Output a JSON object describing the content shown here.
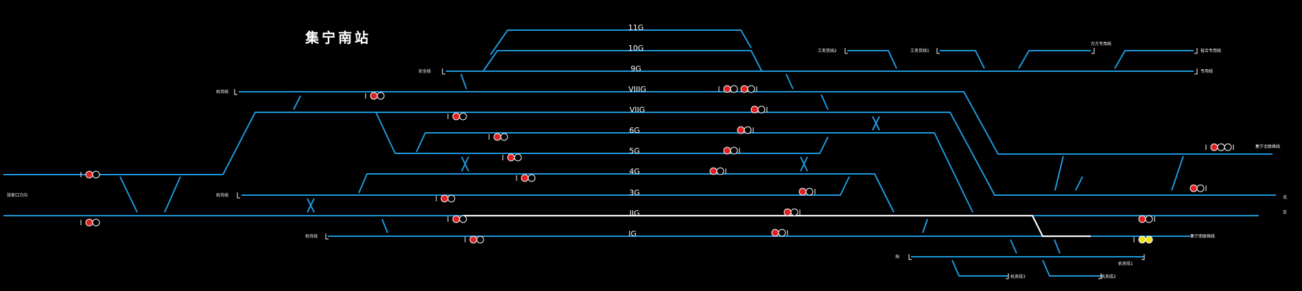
{
  "station": {
    "title": "集宁南站"
  },
  "tracks": [
    {
      "id": "11G",
      "label": "11G"
    },
    {
      "id": "10G",
      "label": "10G"
    },
    {
      "id": "9G",
      "label": "9G"
    },
    {
      "id": "VIIIG",
      "label": "VIIIG"
    },
    {
      "id": "VIIG",
      "label": "VIIG"
    },
    {
      "id": "6G",
      "label": "6G"
    },
    {
      "id": "5G",
      "label": "5G"
    },
    {
      "id": "4G",
      "label": "4G"
    },
    {
      "id": "3G",
      "label": "3G"
    },
    {
      "id": "IIG",
      "label": "IIG"
    },
    {
      "id": "IG",
      "label": "IG"
    }
  ],
  "side_labels": {
    "anquan": "安全线",
    "left_dx1": "机待线",
    "left_dx2": "机待线",
    "left_dx3": "机待线",
    "left_direction": "张家口方向",
    "gongwu2": "工务货线2",
    "gongwu1": "工务货线1",
    "wanfang": "万方专用线",
    "yuhe": "裕合专用线",
    "zhuanyong": "专用线",
    "north_link": "集宁北联络线",
    "right_direction_top": "北",
    "right_direction_bottom": "京",
    "south_link": "集宁南联络线",
    "jidiao1": "机务段1",
    "jidiao2": "机务段2",
    "jidiao3": "机务段3",
    "dang": "挡"
  },
  "colors": {
    "track": "#1e9be0",
    "route": "#ffffff",
    "signal_on": "#e02020",
    "signal_clear": "#f0e020",
    "signal_off": "#000000",
    "text": "#ffffff"
  },
  "signals": [
    {
      "id": "sig-1",
      "state": "red"
    },
    {
      "id": "sig-2",
      "state": "red"
    },
    {
      "id": "sig-3",
      "state": "red"
    },
    {
      "id": "sig-4",
      "state": "red"
    },
    {
      "id": "sig-5",
      "state": "red"
    },
    {
      "id": "sig-6",
      "state": "red"
    },
    {
      "id": "sig-7",
      "state": "red"
    },
    {
      "id": "sig-8",
      "state": "red"
    },
    {
      "id": "sig-9",
      "state": "red"
    },
    {
      "id": "sig-10",
      "state": "red"
    },
    {
      "id": "sig-11",
      "state": "red"
    },
    {
      "id": "sig-12",
      "state": "red"
    },
    {
      "id": "sig-13",
      "state": "red"
    },
    {
      "id": "sig-14",
      "state": "red"
    },
    {
      "id": "sig-15",
      "state": "red"
    },
    {
      "id": "sig-16",
      "state": "red"
    },
    {
      "id": "sig-17",
      "state": "red"
    },
    {
      "id": "sig-18",
      "state": "red"
    },
    {
      "id": "sig-19",
      "state": "red"
    },
    {
      "id": "sig-20",
      "state": "red"
    },
    {
      "id": "sig-21",
      "state": "red"
    },
    {
      "id": "sig-22",
      "state": "red"
    },
    {
      "id": "sig-23",
      "state": "red"
    },
    {
      "id": "sig-24",
      "state": "yellow"
    }
  ]
}
